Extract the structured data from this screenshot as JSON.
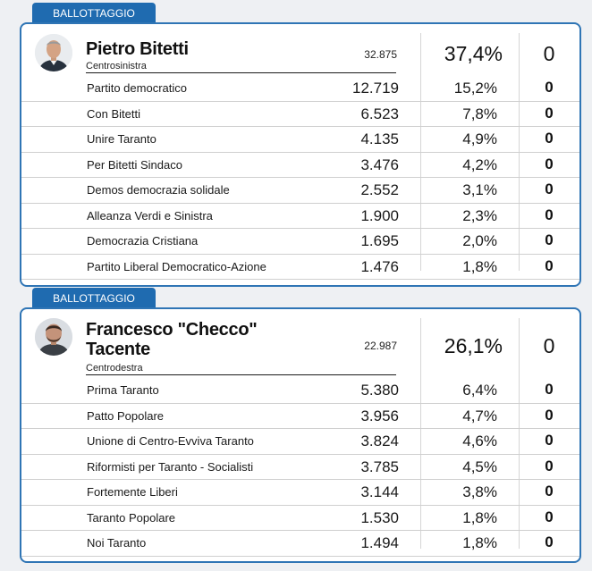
{
  "blocks": [
    {
      "tag": "BALLOTTAGGIO",
      "candidate": {
        "name": "Pietro Bitetti",
        "coalition": "Centrosinistra",
        "votes": "32.875",
        "pct": "37,4%",
        "seats": "0",
        "avatar_icon": "candidate-photo"
      },
      "lists": [
        {
          "name": "Partito democratico",
          "votes": "12.719",
          "pct": "15,2%",
          "seats": "0"
        },
        {
          "name": "Con Bitetti",
          "votes": "6.523",
          "pct": "7,8%",
          "seats": "0"
        },
        {
          "name": "Unire Taranto",
          "votes": "4.135",
          "pct": "4,9%",
          "seats": "0"
        },
        {
          "name": "Per Bitetti Sindaco",
          "votes": "3.476",
          "pct": "4,2%",
          "seats": "0"
        },
        {
          "name": "Demos democrazia solidale",
          "votes": "2.552",
          "pct": "3,1%",
          "seats": "0"
        },
        {
          "name": "Alleanza Verdi e Sinistra",
          "votes": "1.900",
          "pct": "2,3%",
          "seats": "0"
        },
        {
          "name": "Democrazia Cristiana",
          "votes": "1.695",
          "pct": "2,0%",
          "seats": "0"
        },
        {
          "name": "Partito Liberal Democratico-Azione",
          "votes": "1.476",
          "pct": "1,8%",
          "seats": "0"
        }
      ]
    },
    {
      "tag": "BALLOTTAGGIO",
      "candidate": {
        "name": "Francesco \"Checco\"\nTacente",
        "coalition": "Centrodestra",
        "votes": "22.987",
        "pct": "26,1%",
        "seats": "0",
        "avatar_icon": "candidate-photo"
      },
      "lists": [
        {
          "name": "Prima Taranto",
          "votes": "5.380",
          "pct": "6,4%",
          "seats": "0"
        },
        {
          "name": "Patto Popolare",
          "votes": "3.956",
          "pct": "4,7%",
          "seats": "0"
        },
        {
          "name": "Unione di Centro-Evviva Taranto",
          "votes": "3.824",
          "pct": "4,6%",
          "seats": "0"
        },
        {
          "name": "Riformisti per Taranto - Socialisti",
          "votes": "3.785",
          "pct": "4,5%",
          "seats": "0"
        },
        {
          "name": "Fortemente Liberi",
          "votes": "3.144",
          "pct": "3,8%",
          "seats": "0"
        },
        {
          "name": "Taranto Popolare",
          "votes": "1.530",
          "pct": "1,8%",
          "seats": "0"
        },
        {
          "name": "Noi Taranto",
          "votes": "1.494",
          "pct": "1,8%",
          "seats": "0"
        }
      ]
    }
  ],
  "colors": {
    "accent": "#1f6bb0",
    "border": "#2f75b5",
    "background": "#eef0f3"
  }
}
